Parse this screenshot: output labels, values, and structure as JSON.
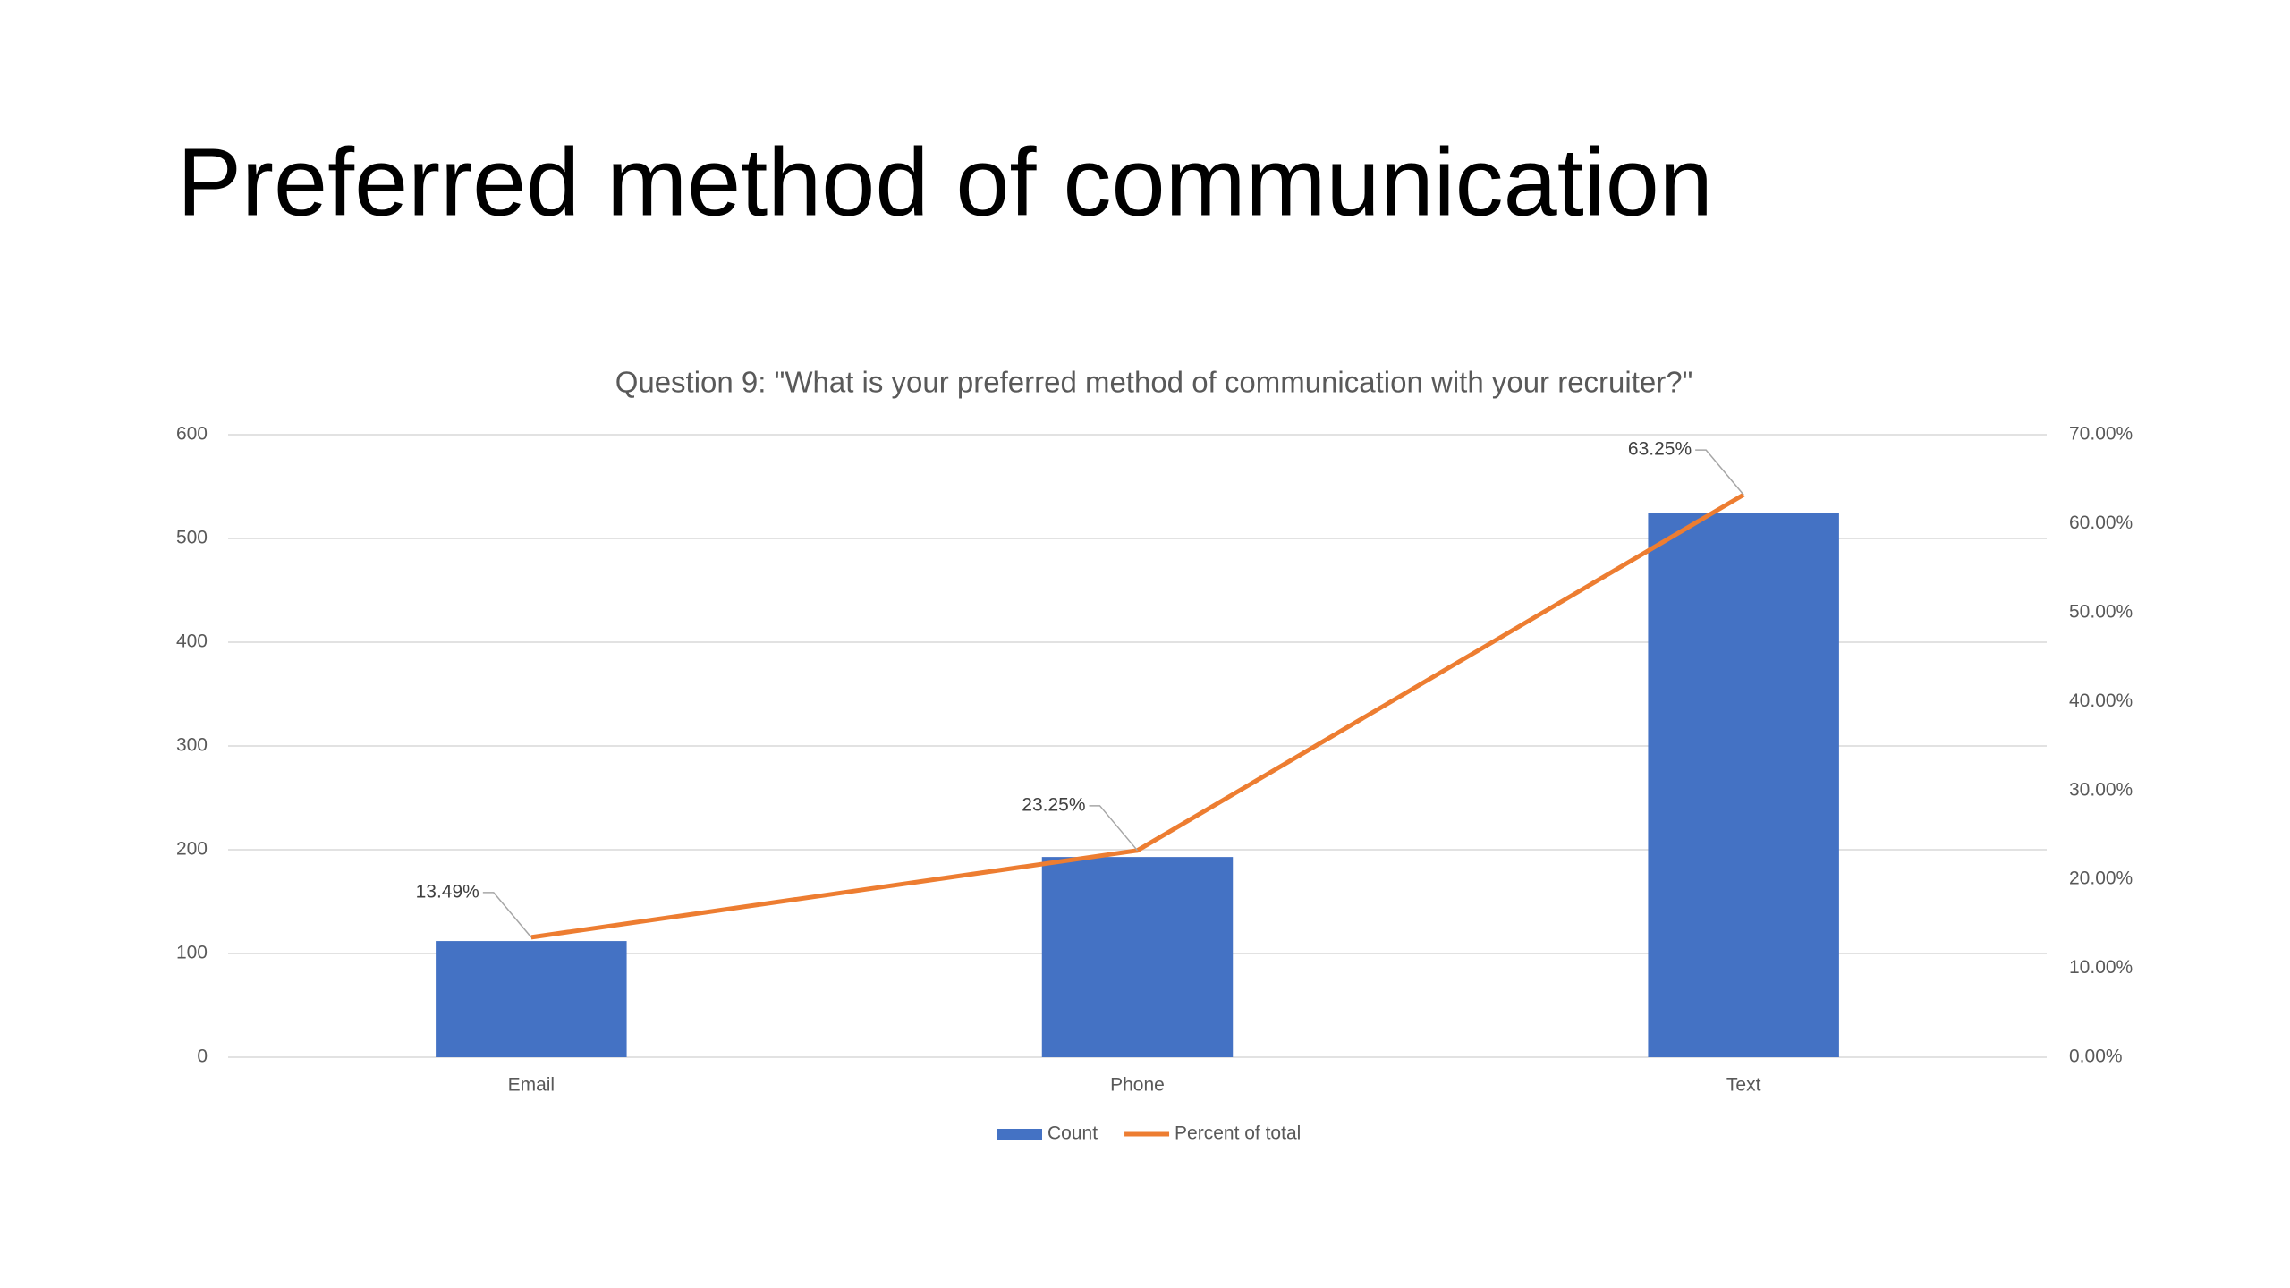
{
  "chart_data": {
    "type": "bar",
    "title": "Preferred method of communication",
    "subtitle": "Question 9: \"What is your preferred method of communication with your recruiter?\"",
    "categories": [
      "Email",
      "Phone",
      "Text"
    ],
    "series": [
      {
        "name": "Count",
        "type": "bar",
        "color": "#4472c4",
        "values": [
          112,
          193,
          525
        ]
      },
      {
        "name": "Percent of total",
        "type": "line",
        "axis": "y2",
        "color": "#ed7d31",
        "values": [
          13.49,
          23.25,
          63.25
        ],
        "value_labels": [
          "13.49%",
          "23.25%",
          "63.25%"
        ]
      }
    ],
    "ylim": [
      0,
      600
    ],
    "yticks": [
      0,
      100,
      200,
      300,
      400,
      500,
      600
    ],
    "y2lim": [
      0,
      70
    ],
    "y2ticks": [
      {
        "value": 0,
        "label": "0.00%"
      },
      {
        "value": 10,
        "label": "10.00%"
      },
      {
        "value": 20,
        "label": "20.00%"
      },
      {
        "value": 30,
        "label": "30.00%"
      },
      {
        "value": 40,
        "label": "40.00%"
      },
      {
        "value": 50,
        "label": "50.00%"
      },
      {
        "value": 60,
        "label": "60.00%"
      },
      {
        "value": 70,
        "label": "70.00%"
      }
    ],
    "grid": true,
    "legend": "bottom"
  }
}
